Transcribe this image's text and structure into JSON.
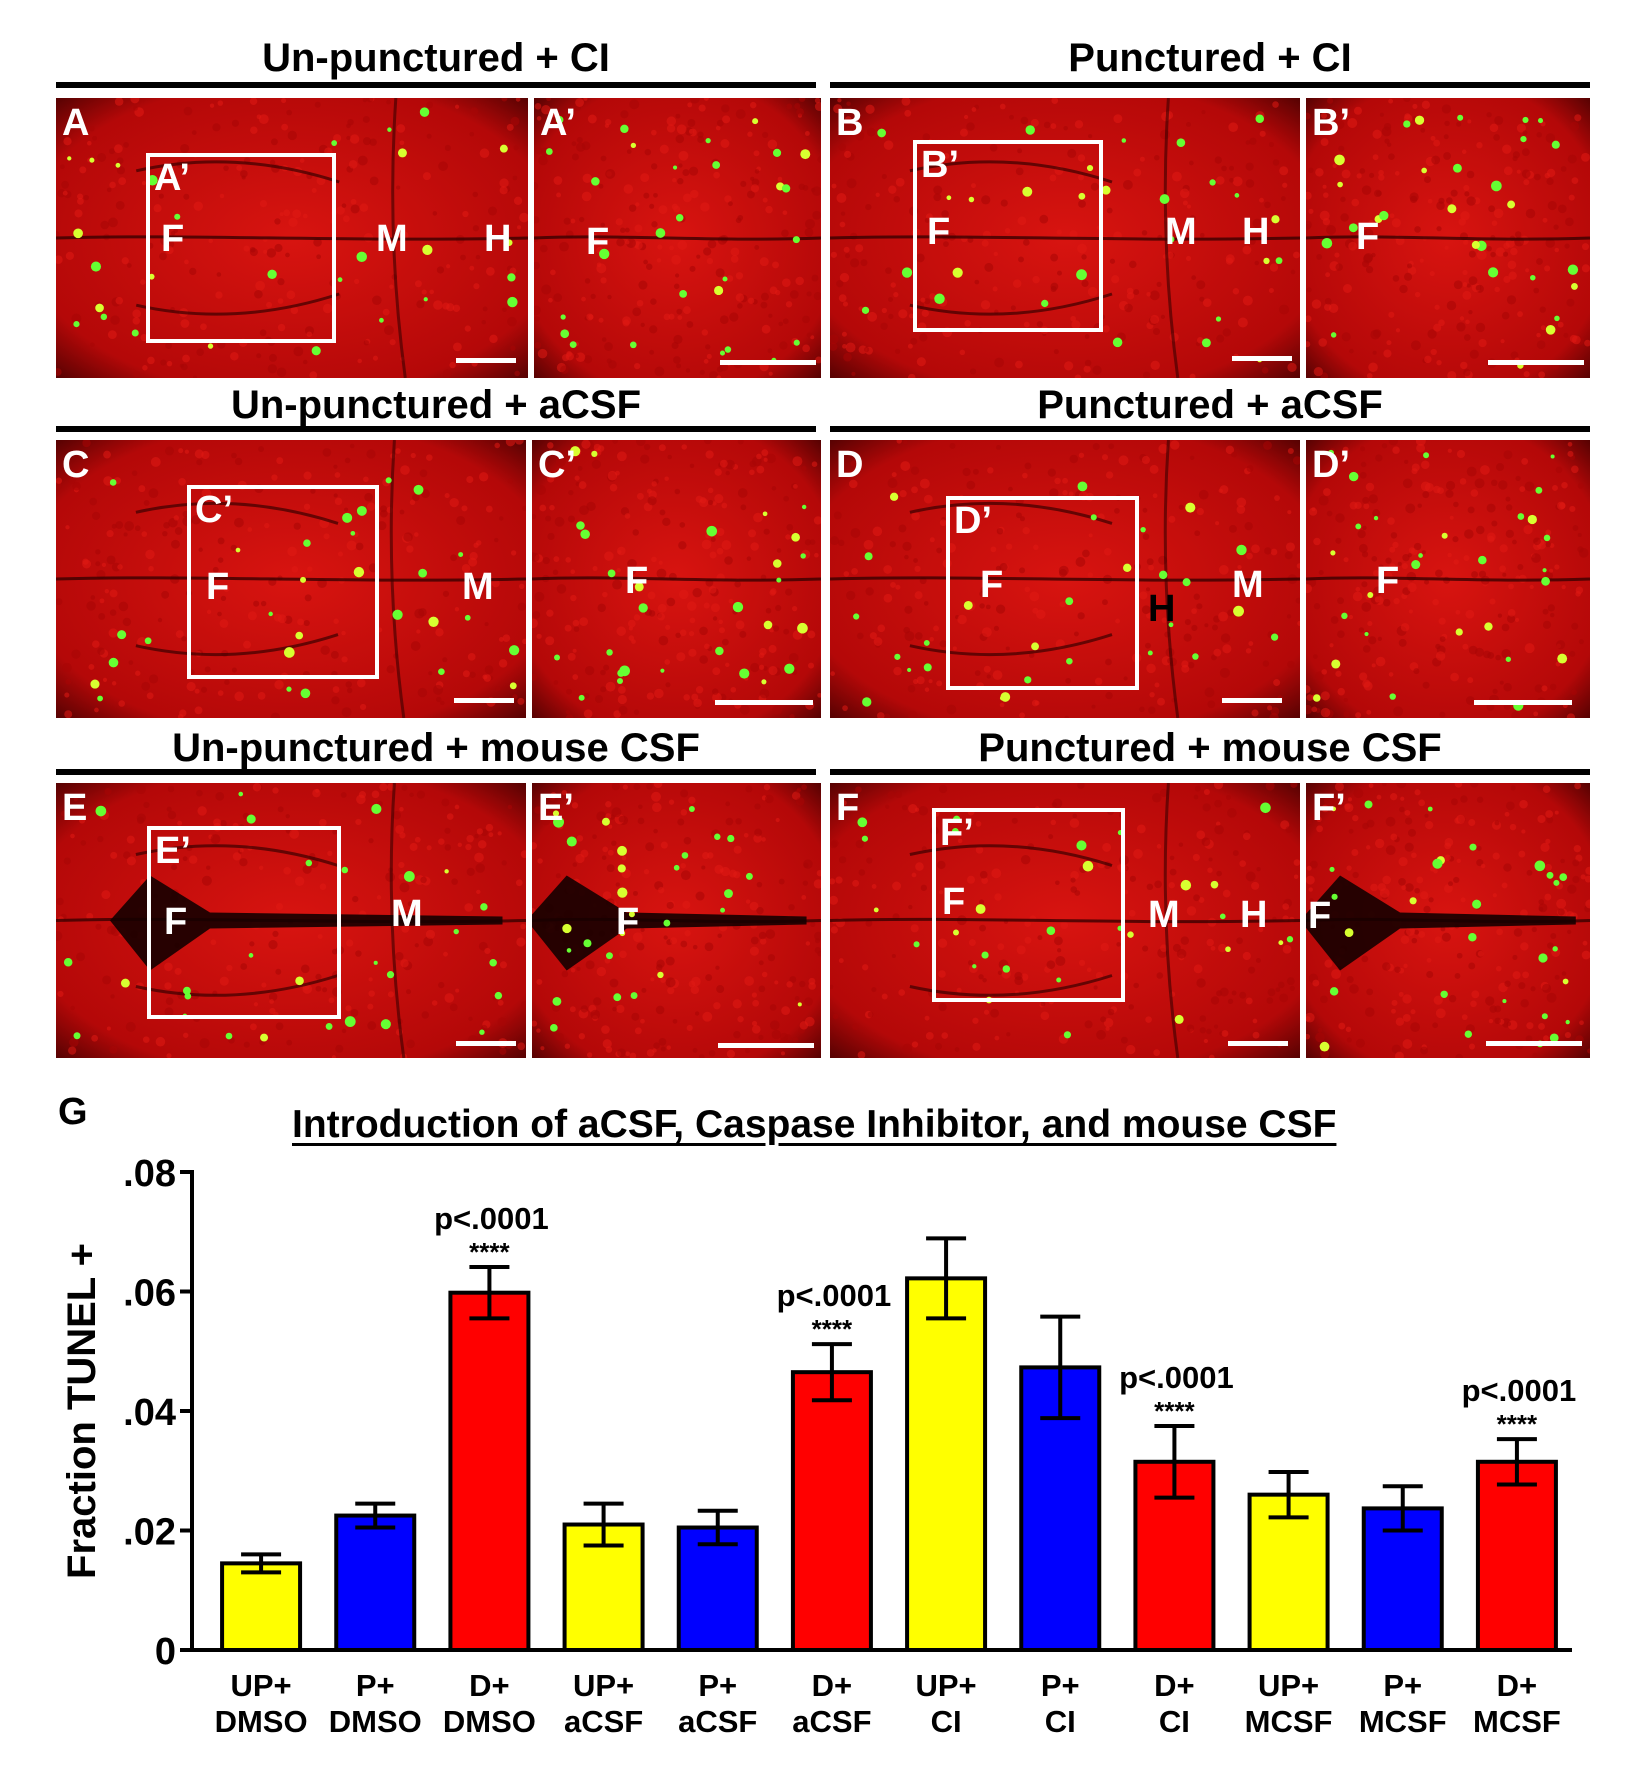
{
  "groups": [
    {
      "title": "Un-punctured + CI"
    },
    {
      "title": "Punctured + CI"
    },
    {
      "title": "Un-punctured + aCSF"
    },
    {
      "title": "Punctured + aCSF"
    },
    {
      "title": "Un-punctured + mouse CSF"
    },
    {
      "title": "Punctured + mouse CSF"
    }
  ],
  "panels": {
    "A": {
      "label": "A",
      "inset": "A’",
      "regions": {
        "f": "F",
        "m": "M",
        "h": "H"
      }
    },
    "A2": {
      "label": "A’",
      "regions": {
        "f": "F"
      }
    },
    "B": {
      "label": "B",
      "inset": "B’",
      "regions": {
        "f": "F",
        "m": "M",
        "h": "H"
      }
    },
    "B2": {
      "label": "B’",
      "regions": {
        "f": "F"
      }
    },
    "C": {
      "label": "C",
      "inset": "C’",
      "regions": {
        "f": "F",
        "m": "M"
      }
    },
    "C2": {
      "label": "C’",
      "regions": {
        "f": "F"
      }
    },
    "D": {
      "label": "D",
      "inset": "D’",
      "regions": {
        "f": "F",
        "h": "H",
        "m": "M"
      }
    },
    "D2": {
      "label": "D’",
      "regions": {
        "f": "F"
      }
    },
    "E": {
      "label": "E",
      "inset": "E’",
      "regions": {
        "f": "F",
        "m": "M"
      }
    },
    "E2": {
      "label": "E’",
      "regions": {
        "f": "F"
      }
    },
    "F": {
      "label": "F",
      "inset": "F’",
      "regions": {
        "f": "F",
        "m": "M",
        "h": "H"
      }
    },
    "F2": {
      "label": "F’",
      "regions": {
        "f": "F"
      }
    }
  },
  "graph": {
    "label": "G",
    "title": "Introduction of aCSF, Caspase Inhibitor, and mouse CSF"
  },
  "colors": {
    "tissue": "#c80a0a",
    "tunel": "#66ff33",
    "UP": "#ffff00",
    "P": "#0000ff",
    "D": "#ff0000"
  },
  "chart_data": {
    "type": "bar",
    "ylabel": "Fraction TUNEL +",
    "ylim": [
      0,
      0.08
    ],
    "yticks": [
      {
        "value": 0,
        "label": "0"
      },
      {
        "value": 0.02,
        "label": ".02"
      },
      {
        "value": 0.04,
        "label": ".04"
      },
      {
        "value": 0.06,
        "label": ".06"
      },
      {
        "value": 0.08,
        "label": ".08"
      }
    ],
    "bars": [
      {
        "l1": "UP+",
        "l2": "DMSO",
        "group": "UP",
        "value": 0.0145,
        "err": 0.0015,
        "p": "",
        "stars": ""
      },
      {
        "l1": "P+",
        "l2": "DMSO",
        "group": "P",
        "value": 0.0225,
        "err": 0.002,
        "p": "",
        "stars": ""
      },
      {
        "l1": "D+",
        "l2": "DMSO",
        "group": "D",
        "value": 0.0598,
        "err": 0.0043,
        "p": "p<.0001",
        "stars": "****"
      },
      {
        "l1": "UP+",
        "l2": "aCSF",
        "group": "UP",
        "value": 0.021,
        "err": 0.0035,
        "p": "",
        "stars": ""
      },
      {
        "l1": "P+",
        "l2": "aCSF",
        "group": "P",
        "value": 0.0205,
        "err": 0.0028,
        "p": "",
        "stars": ""
      },
      {
        "l1": "D+",
        "l2": "aCSF",
        "group": "D",
        "value": 0.0465,
        "err": 0.0047,
        "p": "p<.0001",
        "stars": "****"
      },
      {
        "l1": "UP+",
        "l2": "CI",
        "group": "UP",
        "value": 0.0622,
        "err": 0.0067,
        "p": "",
        "stars": ""
      },
      {
        "l1": "P+",
        "l2": "CI",
        "group": "P",
        "value": 0.0473,
        "err": 0.0085,
        "p": "",
        "stars": ""
      },
      {
        "l1": "D+",
        "l2": "CI",
        "group": "D",
        "value": 0.0315,
        "err": 0.006,
        "p": "p<.0001",
        "stars": "****"
      },
      {
        "l1": "UP+",
        "l2": "MCSF",
        "group": "UP",
        "value": 0.026,
        "err": 0.0038,
        "p": "",
        "stars": ""
      },
      {
        "l1": "P+",
        "l2": "MCSF",
        "group": "P",
        "value": 0.0237,
        "err": 0.0037,
        "p": "",
        "stars": ""
      },
      {
        "l1": "D+",
        "l2": "MCSF",
        "group": "D",
        "value": 0.0315,
        "err": 0.0038,
        "p": "p<.0001",
        "stars": "****"
      }
    ]
  }
}
